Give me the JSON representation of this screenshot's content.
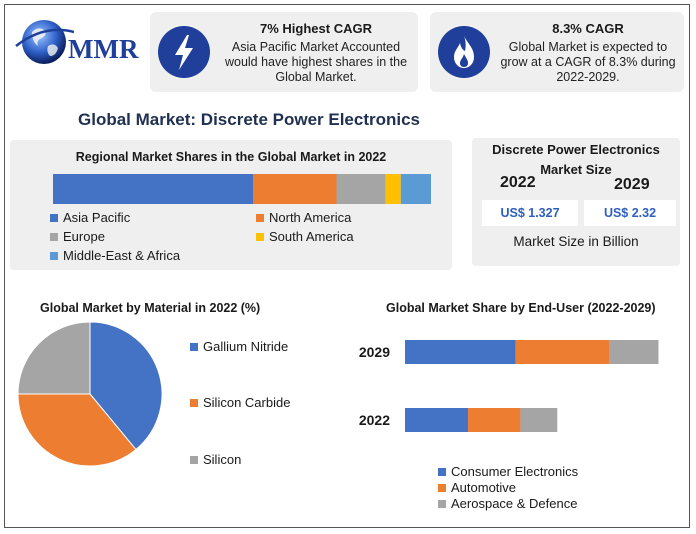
{
  "logo": {
    "text": "MMR"
  },
  "cards": [
    {
      "title": "7% Highest CAGR",
      "body": "Asia Pacific Market Accounted would have highest shares in the Global Market."
    },
    {
      "title": "8.3% CAGR",
      "body": "Global Market is expected to grow at a CAGR of 8.3% during 2022-2029."
    }
  ],
  "icons": {
    "card1": "lightning-bolt-icon",
    "card2": "flame-icon",
    "logo": "globe-icon"
  },
  "main_title": "Global Market: Discrete Power Electronics",
  "market_size": {
    "title": "Discrete Power Electronics Market Size",
    "year_2022": "2022",
    "year_2029": "2029",
    "value_2022": "US$ 1.327",
    "value_2029": "US$ 2.32",
    "unit_label": "Market Size in Billion"
  },
  "colors": {
    "brand": "#1f3f9a",
    "blue": "#4472c4",
    "orange": "#ed7d31",
    "gray": "#a5a5a5",
    "yellow": "#ffc000",
    "light_blue": "#5b9bd5"
  },
  "chart_data": [
    {
      "type": "bar",
      "orientation": "horizontal-stacked",
      "title": "Regional Market Shares in the Global Market in 2022",
      "categories": [
        "2022"
      ],
      "series": [
        {
          "name": "Asia Pacific",
          "values": [
            53
          ],
          "color": "#4472c4"
        },
        {
          "name": "North America",
          "values": [
            22
          ],
          "color": "#ed7d31"
        },
        {
          "name": "Europe",
          "values": [
            13
          ],
          "color": "#a5a5a5"
        },
        {
          "name": "South America",
          "values": [
            4
          ],
          "color": "#ffc000"
        },
        {
          "name": "Middle-East & Africa",
          "values": [
            8
          ],
          "color": "#5b9bd5"
        }
      ],
      "unit": "%"
    },
    {
      "type": "pie",
      "title": "Global Market by Material in 2022 (%)",
      "labels": [
        "Gallium Nitride",
        "Silicon Carbide",
        "Silicon"
      ],
      "values": [
        39,
        36,
        25
      ],
      "colors": [
        "#4472c4",
        "#ed7d31",
        "#a5a5a5"
      ]
    },
    {
      "type": "bar",
      "orientation": "horizontal-stacked",
      "title": "Global Market Share by End-User (2022-2029)",
      "categories": [
        "2029",
        "2022"
      ],
      "series": [
        {
          "name": "Consumer Electronics",
          "values": [
            0.93,
            0.53
          ],
          "color": "#4472c4"
        },
        {
          "name": "Automotive",
          "values": [
            0.79,
            0.44
          ],
          "color": "#ed7d31"
        },
        {
          "name": "Aerospace & Defence",
          "values": [
            0.41,
            0.31
          ],
          "color": "#a5a5a5"
        }
      ],
      "unit": "US$ Billion"
    }
  ]
}
